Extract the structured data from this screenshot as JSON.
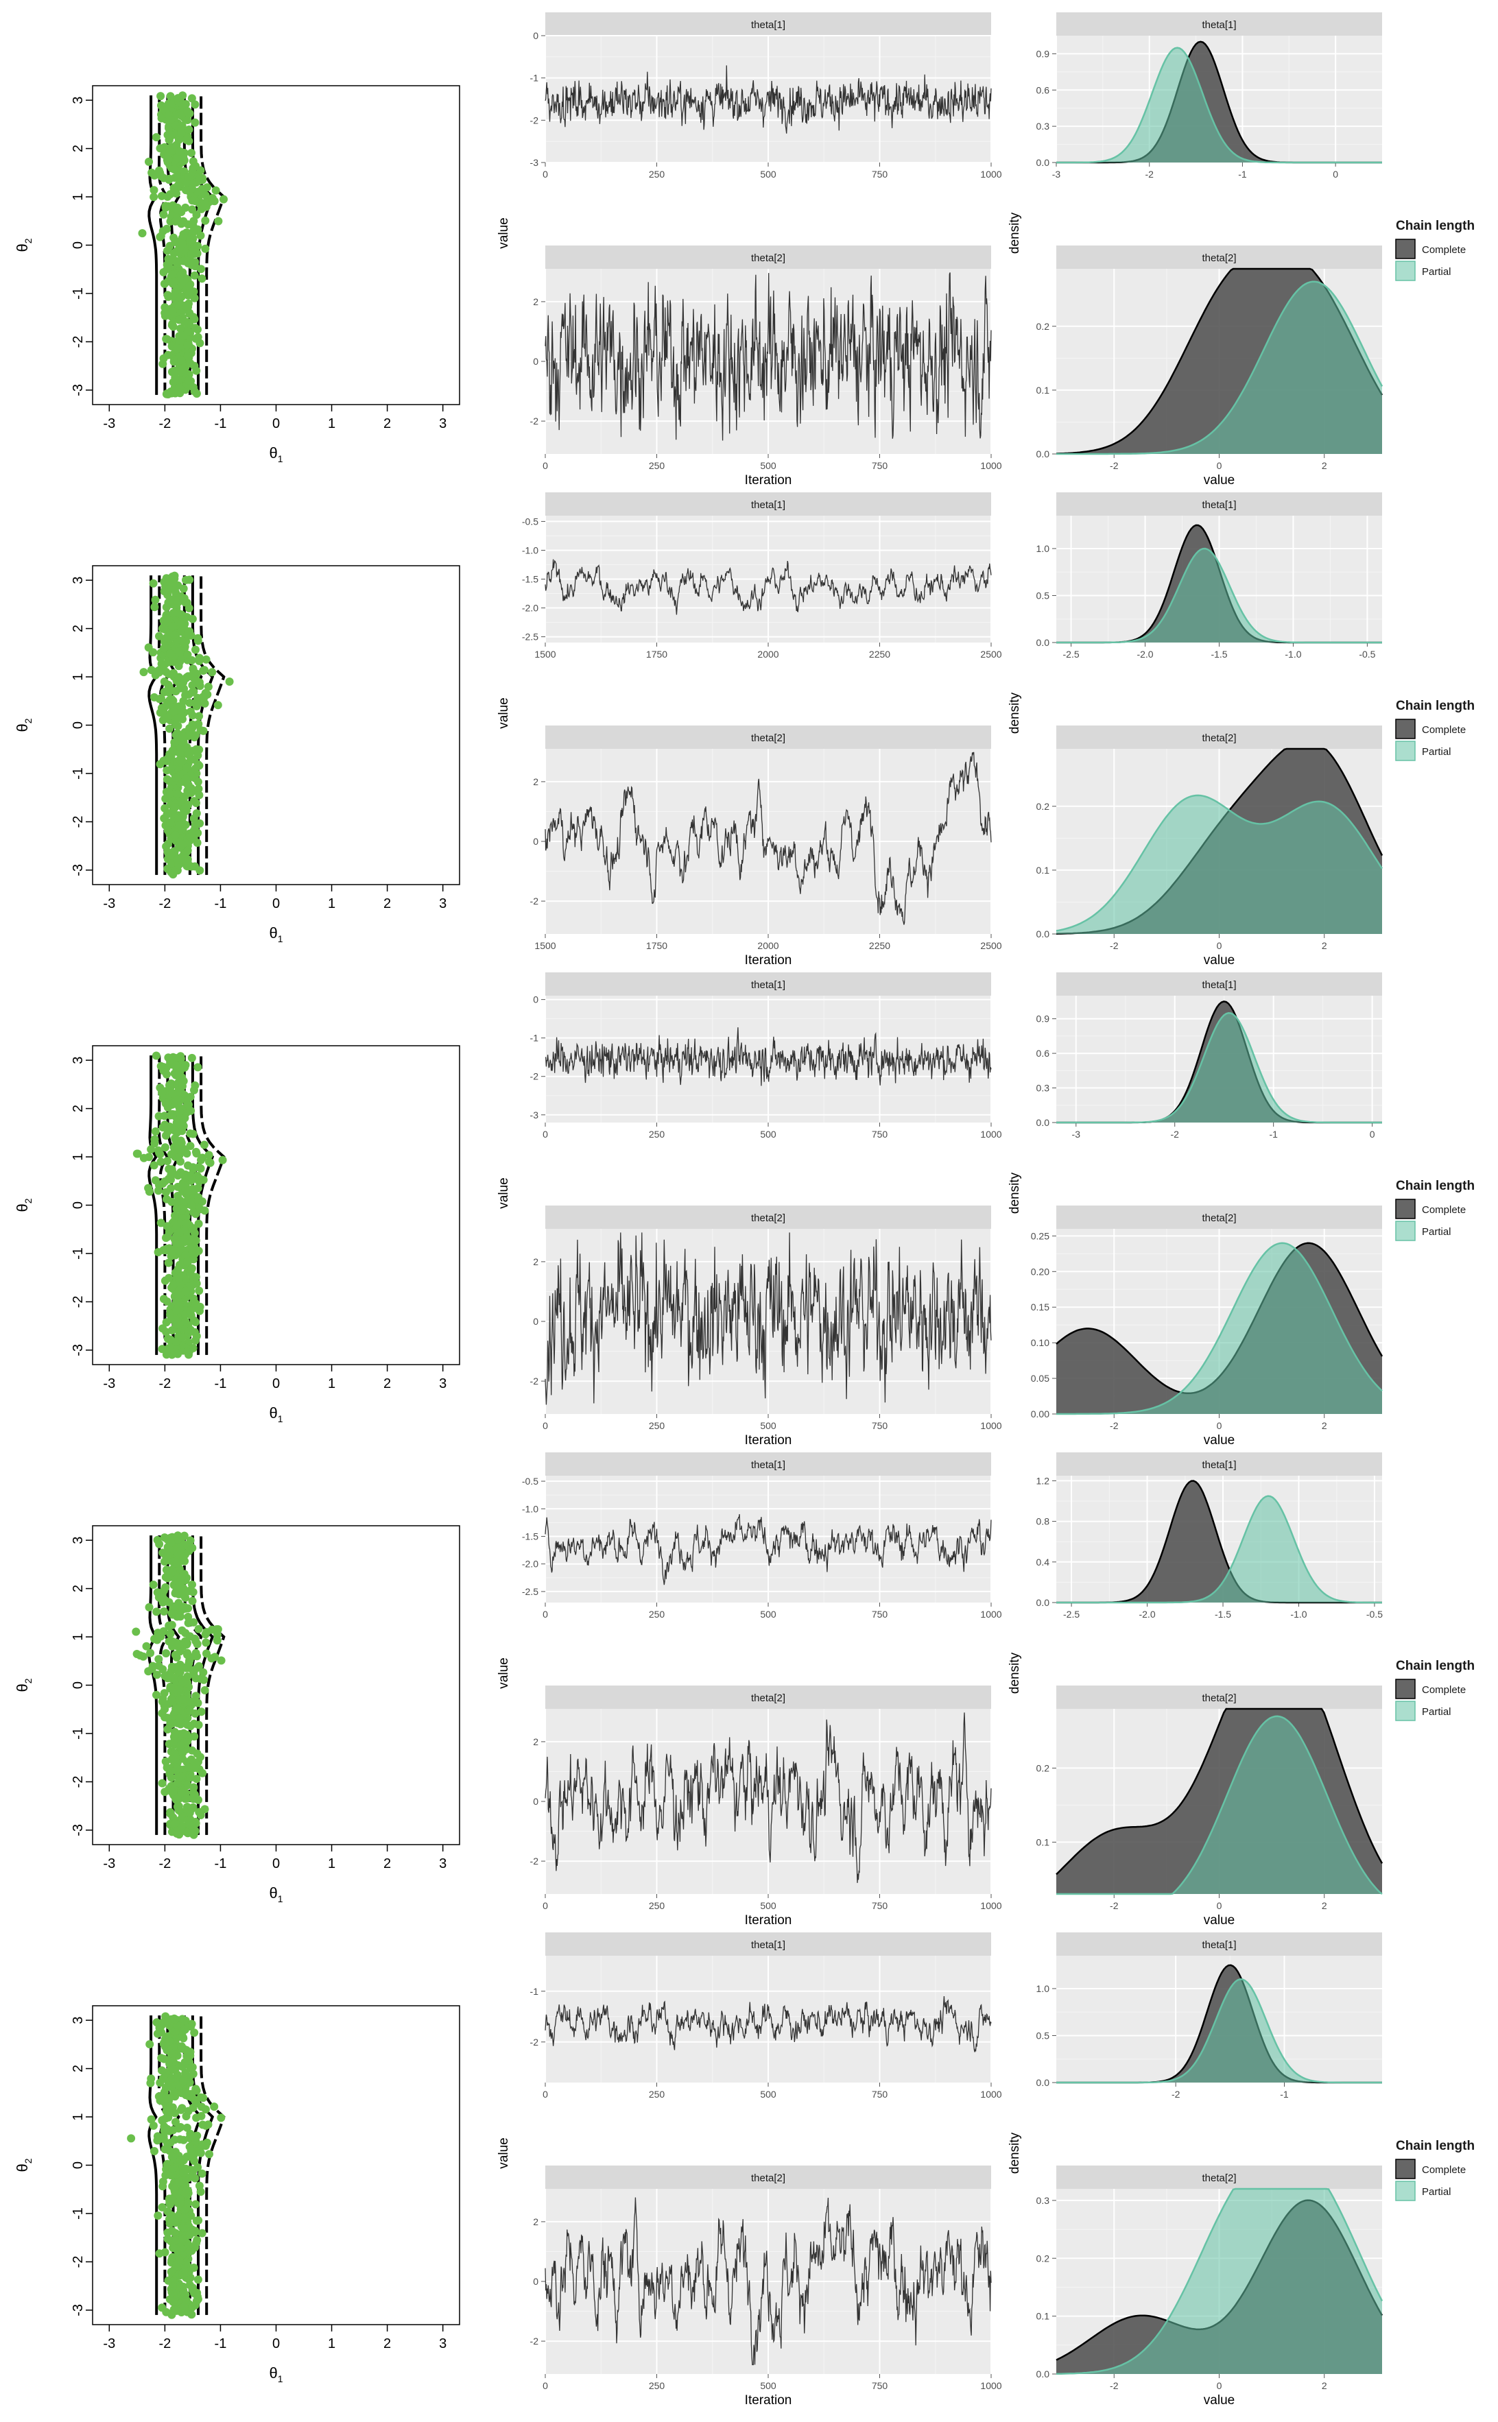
{
  "figure": {
    "scatter_xlabel_main": "θ",
    "scatter_xlabel_sub": "1",
    "scatter_ylabel_main": "θ",
    "scatter_ylabel_sub": "2",
    "scatter_ticks": [
      "-3",
      "-2",
      "-1",
      "0",
      "1",
      "2",
      "3"
    ],
    "trace_ylabel": "value",
    "trace_xlabel": "Iteration",
    "density_ylabel": "density",
    "density_xlabel": "value",
    "facet_labels": [
      "theta[1]",
      "theta[2]"
    ],
    "legend": {
      "title": "Chain length",
      "items": [
        "Complete",
        "Partial"
      ]
    }
  },
  "colors": {
    "points": "#6abf4b",
    "complete": "#555555",
    "partial": "#66c2a5",
    "panel_bg": "#ebebeb",
    "strip_bg": "#d9d9d9",
    "trace_line": "#333333"
  },
  "chart_data": [
    {
      "row": 1,
      "type": "line",
      "trace_theta1": {
        "x_ticks": [
          "0",
          "250",
          "500",
          "750",
          "1000"
        ],
        "xlim": [
          0,
          1000
        ],
        "y_ticks": [
          "-3",
          "-2",
          "-1",
          "0"
        ],
        "ylim": [
          -3,
          0
        ],
        "mean": -1.55,
        "sd": 0.35
      },
      "trace_theta2": {
        "x_ticks": [
          "0",
          "250",
          "500",
          "750",
          "1000"
        ],
        "xlim": [
          0,
          1000
        ],
        "y_ticks": [
          "-2",
          "0",
          "2"
        ],
        "ylim": [
          -3.1,
          3.1
        ],
        "mean": 0.2,
        "sd": 1.6
      },
      "density_theta1": {
        "x_ticks": [
          "-3",
          "-2",
          "-1",
          "0"
        ],
        "xlim": [
          -3,
          0.5
        ],
        "y_ticks": [
          "0.0",
          "0.3",
          "0.6",
          "0.9"
        ],
        "ylim": [
          0,
          1.05
        ],
        "complete_peak_x": -1.45,
        "complete_peak_y": 1.0,
        "partial_peak_x": -1.7,
        "partial_peak_y": 0.95
      },
      "density_theta2": {
        "x_ticks": [
          "-2",
          "0",
          "2"
        ],
        "xlim": [
          -3.1,
          3.1
        ],
        "y_ticks": [
          "0.0",
          "0.1",
          "0.2"
        ],
        "ylim": [
          0,
          0.29
        ],
        "complete_peaks": [
          [
            0.2,
            0.23
          ],
          [
            1.8,
            0.23
          ]
        ],
        "partial_peaks": [
          [
            1.8,
            0.27
          ]
        ]
      }
    },
    {
      "row": 2,
      "type": "line",
      "trace_theta1": {
        "x_ticks": [
          "1500",
          "1750",
          "2000",
          "2250",
          "2500"
        ],
        "xlim": [
          1500,
          2500
        ],
        "y_ticks": [
          "-2.5",
          "-2.0",
          "-1.5",
          "-1.0",
          "-0.5"
        ],
        "ylim": [
          -2.6,
          -0.4
        ],
        "mean": -1.6,
        "sd": 0.3
      },
      "trace_theta2": {
        "x_ticks": [
          "1500",
          "1750",
          "2000",
          "2250",
          "2500"
        ],
        "xlim": [
          1500,
          2500
        ],
        "y_ticks": [
          "-2",
          "0",
          "2"
        ],
        "ylim": [
          -3.1,
          3.1
        ],
        "mean": 0.5,
        "sd": 1.5
      },
      "density_theta1": {
        "x_ticks": [
          "-2.5",
          "-2.0",
          "-1.5",
          "-1.0",
          "-0.5"
        ],
        "xlim": [
          -2.6,
          -0.4
        ],
        "y_ticks": [
          "0.0",
          "0.5",
          "1.0"
        ],
        "ylim": [
          0,
          1.35
        ],
        "complete_peak_x": -1.65,
        "complete_peak_y": 1.25,
        "partial_peak_x": -1.6,
        "partial_peak_y": 1.0
      },
      "density_theta2": {
        "x_ticks": [
          "-2",
          "0",
          "2"
        ],
        "xlim": [
          -3.1,
          3.1
        ],
        "y_ticks": [
          "0.0",
          "0.1",
          "0.2"
        ],
        "ylim": [
          0,
          0.29
        ],
        "complete_peaks": [
          [
            0.2,
            0.14
          ],
          [
            1.9,
            0.27
          ]
        ],
        "partial_peaks": [
          [
            -0.5,
            0.21
          ],
          [
            2.0,
            0.2
          ]
        ]
      }
    },
    {
      "row": 3,
      "type": "line",
      "trace_theta1": {
        "x_ticks": [
          "0",
          "250",
          "500",
          "750",
          "1000"
        ],
        "xlim": [
          0,
          1000
        ],
        "y_ticks": [
          "-3",
          "-2",
          "-1",
          "0"
        ],
        "ylim": [
          -3.2,
          0.1
        ],
        "mean": -1.55,
        "sd": 0.35
      },
      "trace_theta2": {
        "x_ticks": [
          "0",
          "250",
          "500",
          "750",
          "1000"
        ],
        "xlim": [
          0,
          1000
        ],
        "y_ticks": [
          "-2",
          "0",
          "2"
        ],
        "ylim": [
          -3.1,
          3.1
        ],
        "mean": 0.3,
        "sd": 1.6
      },
      "density_theta1": {
        "x_ticks": [
          "-3",
          "-2",
          "-1",
          "0"
        ],
        "xlim": [
          -3.2,
          0.1
        ],
        "y_ticks": [
          "0.0",
          "0.3",
          "0.6",
          "0.9"
        ],
        "ylim": [
          0,
          1.1
        ],
        "complete_peak_x": -1.5,
        "complete_peak_y": 1.05,
        "partial_peak_x": -1.45,
        "partial_peak_y": 0.95
      },
      "density_theta2": {
        "x_ticks": [
          "-2",
          "0",
          "2"
        ],
        "xlim": [
          -3.1,
          3.1
        ],
        "y_ticks": [
          "0.00",
          "0.05",
          "0.10",
          "0.15",
          "0.20",
          "0.25"
        ],
        "ylim": [
          0,
          0.26
        ],
        "complete_peaks": [
          [
            -2.5,
            0.12
          ],
          [
            1.7,
            0.24
          ]
        ],
        "partial_peaks": [
          [
            1.2,
            0.24
          ]
        ]
      }
    },
    {
      "row": 4,
      "type": "line",
      "trace_theta1": {
        "x_ticks": [
          "0",
          "250",
          "500",
          "750",
          "1000"
        ],
        "xlim": [
          0,
          1000
        ],
        "y_ticks": [
          "-2.5",
          "-2.0",
          "-1.5",
          "-1.0",
          "-0.5"
        ],
        "ylim": [
          -2.7,
          -0.4
        ],
        "mean": -1.6,
        "sd": 0.3
      },
      "trace_theta2": {
        "x_ticks": [
          "0",
          "250",
          "500",
          "750",
          "1000"
        ],
        "xlim": [
          0,
          1000
        ],
        "y_ticks": [
          "-2",
          "0",
          "2"
        ],
        "ylim": [
          -3.1,
          3.1
        ],
        "mean": 0.3,
        "sd": 1.5
      },
      "density_theta1": {
        "x_ticks": [
          "-2.5",
          "-2.0",
          "-1.5",
          "-1.0",
          "-0.5"
        ],
        "xlim": [
          -2.6,
          -0.45
        ],
        "y_ticks": [
          "0.0",
          "0.4",
          "0.8",
          "1.2"
        ],
        "ylim": [
          0,
          1.25
        ],
        "complete_peak_x": -1.7,
        "complete_peak_y": 1.2,
        "partial_peak_x": -1.2,
        "partial_peak_y": 1.05
      },
      "density_theta2": {
        "x_ticks": [
          "-2",
          "0",
          "2"
        ],
        "xlim": [
          -3.1,
          3.1
        ],
        "y_ticks": [
          "0.1",
          "0.2"
        ],
        "ylim": [
          0.03,
          0.28
        ],
        "complete_peaks": [
          [
            -2.0,
            0.11
          ],
          [
            0.5,
            0.22
          ],
          [
            1.6,
            0.23
          ]
        ],
        "partial_peaks": [
          [
            1.1,
            0.27
          ]
        ]
      }
    },
    {
      "row": 5,
      "type": "line",
      "trace_theta1": {
        "x_ticks": [
          "0",
          "250",
          "500",
          "750",
          "1000"
        ],
        "xlim": [
          0,
          1000
        ],
        "y_ticks": [
          "-2",
          "-1"
        ],
        "ylim": [
          -2.8,
          -0.3
        ],
        "mean": -1.6,
        "sd": 0.3
      },
      "trace_theta2": {
        "x_ticks": [
          "0",
          "250",
          "500",
          "750",
          "1000"
        ],
        "xlim": [
          0,
          1000
        ],
        "y_ticks": [
          "-2",
          "0",
          "2"
        ],
        "ylim": [
          -3.1,
          3.1
        ],
        "mean": 0.4,
        "sd": 1.4
      },
      "density_theta1": {
        "x_ticks": [
          "-2",
          "-1"
        ],
        "xlim": [
          -3.1,
          -0.1
        ],
        "y_ticks": [
          "0.0",
          "0.5",
          "1.0"
        ],
        "ylim": [
          0,
          1.35
        ],
        "complete_peak_x": -1.5,
        "complete_peak_y": 1.25,
        "partial_peak_x": -1.4,
        "partial_peak_y": 1.1
      },
      "density_theta2": {
        "x_ticks": [
          "-2",
          "0",
          "2"
        ],
        "xlim": [
          -3.1,
          3.1
        ],
        "y_ticks": [
          "0.0",
          "0.1",
          "0.2",
          "0.3"
        ],
        "ylim": [
          0,
          0.32
        ],
        "complete_peaks": [
          [
            -1.5,
            0.1
          ],
          [
            1.7,
            0.3
          ]
        ],
        "partial_peaks": [
          [
            0.4,
            0.26
          ],
          [
            1.9,
            0.27
          ]
        ]
      }
    }
  ]
}
